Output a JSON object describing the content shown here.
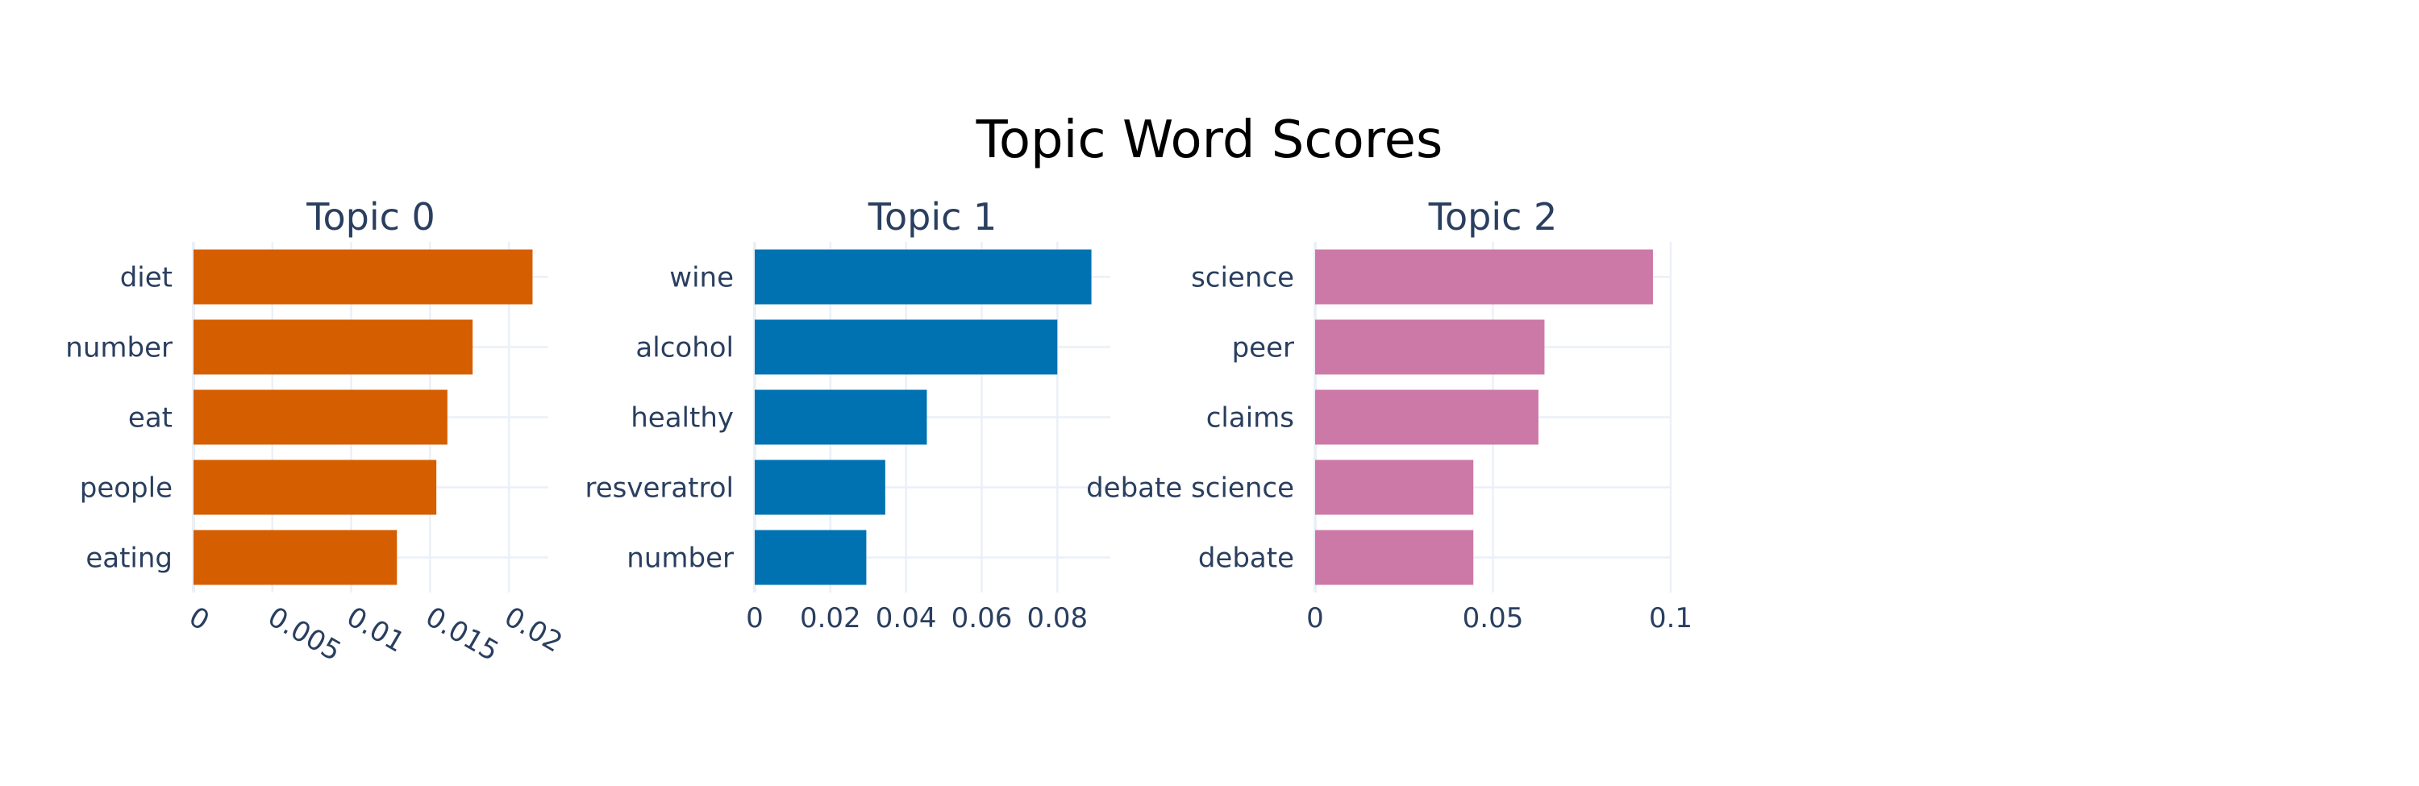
{
  "title": "Topic Word Scores",
  "chart_data": [
    {
      "type": "bar",
      "orientation": "horizontal",
      "title": "Topic 0",
      "color": "#d55e00",
      "categories": [
        "diet",
        "number",
        "eat",
        "people",
        "eating"
      ],
      "values": [
        0.0215,
        0.0177,
        0.0161,
        0.0154,
        0.0129
      ],
      "xlim": [
        0,
        0.0225
      ],
      "xticks": [
        0,
        0.005,
        0.01,
        0.015,
        0.02
      ],
      "xtick_labels": [
        "0",
        "0.005",
        "0.01",
        "0.015",
        "0.02"
      ],
      "tick_rotation": 30
    },
    {
      "type": "bar",
      "orientation": "horizontal",
      "title": "Topic 1",
      "color": "#0072b2",
      "categories": [
        "wine",
        "alcohol",
        "healthy",
        "resveratrol",
        "number"
      ],
      "values": [
        0.089,
        0.08,
        0.0455,
        0.0345,
        0.0295
      ],
      "xlim": [
        0,
        0.094
      ],
      "xticks": [
        0,
        0.02,
        0.04,
        0.06,
        0.08
      ],
      "xtick_labels": [
        "0",
        "0.02",
        "0.04",
        "0.06",
        "0.08"
      ],
      "tick_rotation": 0
    },
    {
      "type": "bar",
      "orientation": "horizontal",
      "title": "Topic 2",
      "color": "#cc79a7",
      "categories": [
        "science",
        "peer",
        "claims",
        "debate science",
        "debate"
      ],
      "values": [
        0.095,
        0.0645,
        0.0628,
        0.0445,
        0.0445
      ],
      "xlim": [
        0,
        0.1
      ],
      "xticks": [
        0,
        0.05,
        0.1
      ],
      "xtick_labels": [
        "0",
        "0.05",
        "0.1"
      ],
      "tick_rotation": 0
    }
  ]
}
